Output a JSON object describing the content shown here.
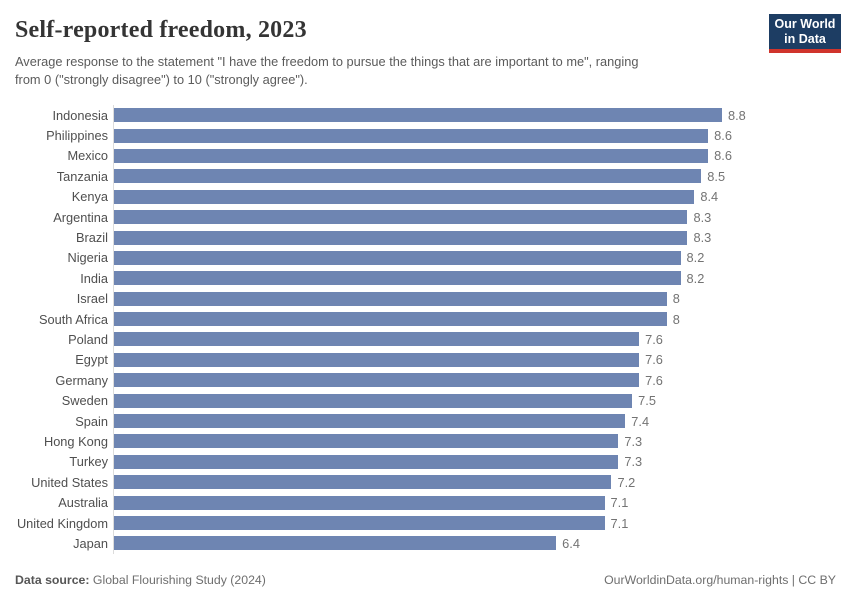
{
  "header": {
    "title": "Self-reported freedom, 2023",
    "subtitle_line1": "Average response to the statement \"I have the freedom to pursue the things that are important to me\", ranging",
    "subtitle_line2": "from 0 (\"strongly disagree\") to 10 (\"strongly agree\").",
    "logo": {
      "line1": "Our World",
      "line2": "in Data"
    }
  },
  "chart_data": {
    "type": "bar",
    "orientation": "horizontal",
    "title": "Self-reported freedom, 2023",
    "xlabel": "",
    "ylabel": "",
    "xlim": [
      0,
      8.8
    ],
    "grid": false,
    "legend": false,
    "categories": [
      "Indonesia",
      "Philippines",
      "Mexico",
      "Tanzania",
      "Kenya",
      "Argentina",
      "Brazil",
      "Nigeria",
      "India",
      "Israel",
      "South Africa",
      "Poland",
      "Egypt",
      "Germany",
      "Sweden",
      "Spain",
      "Hong Kong",
      "Turkey",
      "United States",
      "Australia",
      "United Kingdom",
      "Japan"
    ],
    "values": [
      8.8,
      8.6,
      8.6,
      8.5,
      8.4,
      8.3,
      8.3,
      8.2,
      8.2,
      8,
      8,
      7.6,
      7.6,
      7.6,
      7.5,
      7.4,
      7.3,
      7.3,
      7.2,
      7.1,
      7.1,
      6.4
    ],
    "value_labels": [
      "8.8",
      "8.6",
      "8.6",
      "8.5",
      "8.4",
      "8.3",
      "8.3",
      "8.2",
      "8.2",
      "8",
      "8",
      "7.6",
      "7.6",
      "7.6",
      "7.5",
      "7.4",
      "7.3",
      "7.3",
      "7.2",
      "7.1",
      "7.1",
      "6.4"
    ],
    "bar_color": "#6e85b2",
    "axis_line_color": "#dcdcdc"
  },
  "footer": {
    "source_label": "Data source:",
    "source_value": " Global Flourishing Study (2024)",
    "attribution": "OurWorldinData.org/human-rights | CC BY"
  },
  "colors": {
    "logo_background": "#1d3d63",
    "logo_stripe": "#d0342c",
    "title_text": "#343434",
    "subtitle_text": "#5b5b5b",
    "category_label_text": "#4f4f4f",
    "value_label_text": "#737373"
  }
}
